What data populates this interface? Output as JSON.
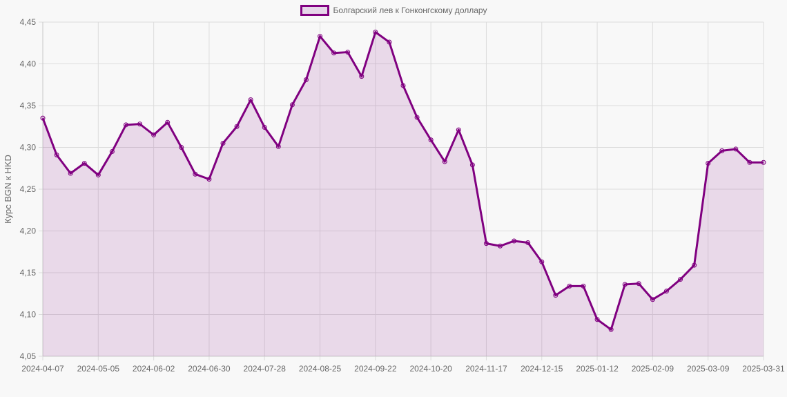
{
  "chart_data": {
    "type": "area",
    "title": "",
    "legend": [
      {
        "label": "Болгарский лев к Гонконгскому доллару",
        "color": "#800080",
        "fill": "rgba(128,0,128,0.12)"
      }
    ],
    "legend_position": "top",
    "xlabel": "",
    "ylabel": "Курс BGN к HKD",
    "ylim": [
      4.05,
      4.45
    ],
    "grid": true,
    "y_ticks": [
      "4,05",
      "4,10",
      "4,15",
      "4,20",
      "4,25",
      "4,30",
      "4,35",
      "4,40",
      "4,45"
    ],
    "x_tick_labels": [
      "2024-04-07",
      "2024-05-05",
      "2024-06-02",
      "2024-06-30",
      "2024-07-28",
      "2024-08-25",
      "2024-09-22",
      "2024-10-20",
      "2024-11-17",
      "2024-12-15",
      "2025-01-12",
      "2025-02-09",
      "2025-03-09",
      "2025-03-31"
    ],
    "x_tick_indices": [
      0,
      4,
      8,
      12,
      16,
      20,
      24,
      28,
      32,
      36,
      40,
      44,
      48,
      52
    ],
    "series": [
      {
        "name": "Болгарский лев к Гонконгскому доллару",
        "color": "#800080",
        "values": [
          4.335,
          4.291,
          4.269,
          4.281,
          4.267,
          4.295,
          4.327,
          4.328,
          4.315,
          4.33,
          4.3,
          4.268,
          4.262,
          4.305,
          4.325,
          4.357,
          4.324,
          4.301,
          4.351,
          4.381,
          4.433,
          4.413,
          4.414,
          4.385,
          4.438,
          4.426,
          4.374,
          4.336,
          4.309,
          4.283,
          4.321,
          4.279,
          4.185,
          4.182,
          4.188,
          4.186,
          4.163,
          4.123,
          4.134,
          4.134,
          4.094,
          4.082,
          4.136,
          4.137,
          4.118,
          4.128,
          4.142,
          4.159,
          4.281,
          4.296,
          4.298,
          4.282,
          4.282
        ]
      }
    ]
  }
}
